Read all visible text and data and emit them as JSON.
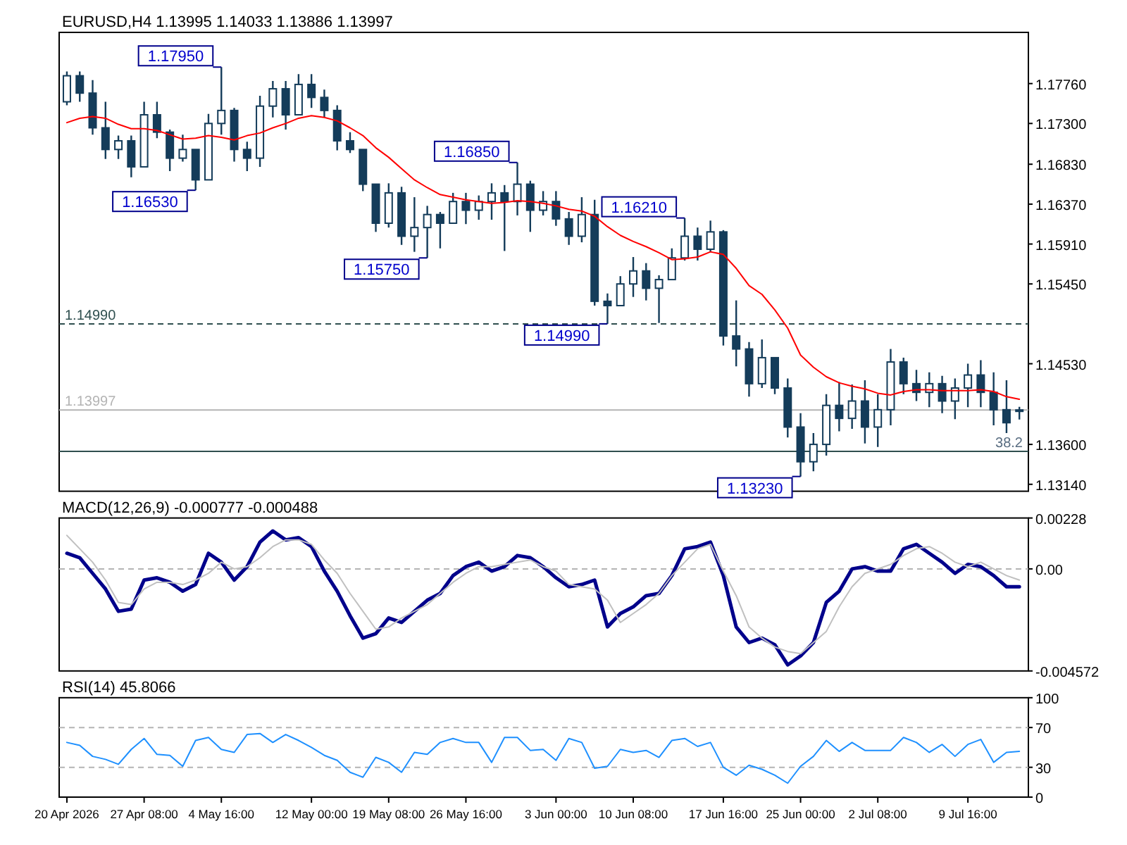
{
  "chart_data": [
    {
      "type": "candlestick",
      "title": "EURUSD,H4  1.13995 1.14033 1.13886 1.13997",
      "tick_labels": "y",
      "ylim": [
        1.1306,
        1.1835
      ],
      "yticks": [
        {
          "value": 1.1776,
          "label": "1.17760"
        },
        {
          "value": 1.173,
          "label": "1.17300"
        },
        {
          "value": 1.1683,
          "label": "1.16830"
        },
        {
          "value": 1.1637,
          "label": "1.16370"
        },
        {
          "value": 1.1591,
          "label": "1.15910"
        },
        {
          "value": 1.1545,
          "label": "1.15450"
        },
        {
          "value": 1.1453,
          "label": "1.14530"
        },
        {
          "value": 1.136,
          "label": "1.13600"
        },
        {
          "value": 1.1314,
          "label": "1.13140"
        }
      ],
      "ohlc": [
        [
          1.1755,
          1.179,
          1.1751,
          1.1785
        ],
        [
          1.1785,
          1.179,
          1.1755,
          1.1765
        ],
        [
          1.1765,
          1.178,
          1.1717,
          1.1725
        ],
        [
          1.1725,
          1.1755,
          1.1689,
          1.17
        ],
        [
          1.17,
          1.1716,
          1.1689,
          1.171
        ],
        [
          1.171,
          1.1716,
          1.1668,
          1.168
        ],
        [
          1.168,
          1.1755,
          1.168,
          1.174
        ],
        [
          1.174,
          1.1755,
          1.1713,
          1.172
        ],
        [
          1.172,
          1.1723,
          1.1675,
          1.169
        ],
        [
          1.169,
          1.1717,
          1.1686,
          1.17
        ],
        [
          1.17,
          1.17,
          1.1653,
          1.1665
        ],
        [
          1.1665,
          1.1741,
          1.1665,
          1.173
        ],
        [
          1.173,
          1.1795,
          1.1717,
          1.1745
        ],
        [
          1.1745,
          1.1748,
          1.1686,
          1.17
        ],
        [
          1.17,
          1.1709,
          1.1675,
          1.169
        ],
        [
          1.169,
          1.1762,
          1.168,
          1.175
        ],
        [
          1.175,
          1.1779,
          1.1737,
          1.177
        ],
        [
          1.177,
          1.1779,
          1.1723,
          1.174
        ],
        [
          1.174,
          1.1787,
          1.174,
          1.1775
        ],
        [
          1.1775,
          1.1787,
          1.1748,
          1.176
        ],
        [
          1.176,
          1.1769,
          1.1737,
          1.1745
        ],
        [
          1.1745,
          1.1751,
          1.1699,
          1.171
        ],
        [
          1.171,
          1.172,
          1.1696,
          1.17
        ],
        [
          1.17,
          1.17,
          1.1652,
          1.166
        ],
        [
          1.166,
          1.166,
          1.1605,
          1.1615
        ],
        [
          1.1615,
          1.1661,
          1.161,
          1.165
        ],
        [
          1.165,
          1.1657,
          1.159,
          1.16
        ],
        [
          1.16,
          1.1645,
          1.1582,
          1.161
        ],
        [
          1.161,
          1.1635,
          1.1575,
          1.1625
        ],
        [
          1.1625,
          1.1628,
          1.1586,
          1.1615
        ],
        [
          1.1615,
          1.165,
          1.1615,
          1.164
        ],
        [
          1.164,
          1.165,
          1.1614,
          1.163
        ],
        [
          1.163,
          1.1647,
          1.1619,
          1.164
        ],
        [
          1.164,
          1.1661,
          1.1619,
          1.165
        ],
        [
          1.165,
          1.1659,
          1.1583,
          1.164
        ],
        [
          1.164,
          1.1685,
          1.1624,
          1.166
        ],
        [
          1.166,
          1.1664,
          1.1605,
          1.163
        ],
        [
          1.163,
          1.1652,
          1.1624,
          1.164
        ],
        [
          1.164,
          1.1652,
          1.1612,
          1.162
        ],
        [
          1.162,
          1.1628,
          1.159,
          1.16
        ],
        [
          1.16,
          1.1645,
          1.1593,
          1.1625
        ],
        [
          1.1625,
          1.1642,
          1.152,
          1.1525
        ],
        [
          1.1525,
          1.1534,
          1.1499,
          1.152
        ],
        [
          1.152,
          1.1554,
          1.152,
          1.1545
        ],
        [
          1.1545,
          1.1576,
          1.153,
          1.156
        ],
        [
          1.156,
          1.1569,
          1.1526,
          1.154
        ],
        [
          1.154,
          1.1555,
          1.15,
          1.155
        ],
        [
          1.155,
          1.1586,
          1.155,
          1.1575
        ],
        [
          1.1575,
          1.1621,
          1.1572,
          1.16
        ],
        [
          1.16,
          1.161,
          1.1572,
          1.1585
        ],
        [
          1.1585,
          1.1618,
          1.1582,
          1.1605
        ],
        [
          1.1605,
          1.1607,
          1.1474,
          1.1485
        ],
        [
          1.1485,
          1.1526,
          1.145,
          1.147
        ],
        [
          1.147,
          1.1478,
          1.1415,
          1.143
        ],
        [
          1.143,
          1.1481,
          1.1425,
          1.146
        ],
        [
          1.146,
          1.146,
          1.1418,
          1.1425
        ],
        [
          1.1425,
          1.1436,
          1.1368,
          1.138
        ],
        [
          1.138,
          1.1396,
          1.1323,
          1.134
        ],
        [
          1.134,
          1.1373,
          1.1329,
          1.136
        ],
        [
          1.136,
          1.1418,
          1.1347,
          1.1405
        ],
        [
          1.1405,
          1.1432,
          1.1375,
          1.139
        ],
        [
          1.139,
          1.1429,
          1.1378,
          1.141
        ],
        [
          1.141,
          1.1434,
          1.1361,
          1.138
        ],
        [
          1.138,
          1.1418,
          1.1357,
          1.14
        ],
        [
          1.14,
          1.147,
          1.1382,
          1.1455
        ],
        [
          1.1455,
          1.146,
          1.1418,
          1.143
        ],
        [
          1.143,
          1.1446,
          1.141,
          1.142
        ],
        [
          1.142,
          1.1443,
          1.1403,
          1.143
        ],
        [
          1.143,
          1.1439,
          1.1396,
          1.141
        ],
        [
          1.141,
          1.1436,
          1.1389,
          1.1425
        ],
        [
          1.1425,
          1.1453,
          1.1403,
          1.144
        ],
        [
          1.144,
          1.1457,
          1.1403,
          1.142
        ],
        [
          1.142,
          1.1443,
          1.1382,
          1.14
        ],
        [
          1.14,
          1.1434,
          1.1373,
          1.1385
        ],
        [
          1.13995,
          1.14033,
          1.13886,
          1.13997
        ]
      ],
      "series": [
        {
          "type": "line",
          "color": "#ff0000",
          "values": [
            1.1731,
            1.1736,
            1.1738,
            1.1736,
            1.1729,
            1.1724,
            1.1724,
            1.1722,
            1.1717,
            1.1712,
            1.1713,
            1.1716,
            1.1714,
            1.1711,
            1.1716,
            1.1719,
            1.1725,
            1.173,
            1.1736,
            1.1739,
            1.1737,
            1.1733,
            1.1725,
            1.1716,
            1.1702,
            1.1691,
            1.1678,
            1.1665,
            1.1656,
            1.1648,
            1.1645,
            1.1642,
            1.164,
            1.1638,
            1.1639,
            1.1641,
            1.164,
            1.1638,
            1.1635,
            1.1631,
            1.1629,
            1.1623,
            1.1611,
            1.1601,
            1.1594,
            1.1588,
            1.1581,
            1.1573,
            1.1574,
            1.1576,
            1.1582,
            1.1579,
            1.1563,
            1.1543,
            1.1533,
            1.1515,
            1.1494,
            1.1463,
            1.1449,
            1.1438,
            1.1431,
            1.1427,
            1.1424,
            1.1419,
            1.1417,
            1.1421,
            1.1423,
            1.1423,
            1.1422,
            1.1422,
            1.1422,
            1.1423,
            1.1421,
            1.1415,
            1.1412
          ]
        }
      ],
      "ref_lines": [
        {
          "axis": "y",
          "value": 1.1499,
          "label": "1.14990",
          "color": "#2f4f4f",
          "line_style": "dashed"
        },
        {
          "axis": "y",
          "value": 1.13997,
          "label": "1.13997",
          "color": "#b4b4b4",
          "line_style": "solid"
        },
        {
          "axis": "y",
          "value": 1.1352,
          "color": "#2f4f4f",
          "line_style": "solid"
        }
      ],
      "annotations": [
        "1.17950",
        "1.16530",
        "1.15750",
        "1.16850",
        "1.14990",
        "1.16210",
        "1.13230",
        {
          "text": "38.2",
          "y": 1.1352
        }
      ]
    },
    {
      "type": "line",
      "title": "MACD(12,26,9) -0.000777 -0.000488",
      "tick_labels": "y",
      "ylim": [
        -0.004572,
        0.00228
      ],
      "yticks": [
        0.00228,
        {
          "value": 0,
          "label": "0.00"
        },
        -0.004572
      ],
      "ref_lines": [
        {
          "axis": "y",
          "value": 0,
          "color": "#b4b4b4",
          "line_style": "dashed"
        }
      ],
      "series": [
        {
          "color": "#00008b",
          "values": [
            0.0007,
            0.0005,
            -0.0002,
            -0.0009,
            -0.0019,
            -0.0018,
            -0.0005,
            -0.0004,
            -0.0006,
            -0.001,
            -0.0007,
            0.0007,
            0.0003,
            -0.0005,
            0.0001,
            0.0012,
            0.0017,
            0.0013,
            0.0014,
            0.001,
            -0.0001,
            -0.001,
            -0.0021,
            -0.0031,
            -0.0029,
            -0.0022,
            -0.0024,
            -0.0019,
            -0.0014,
            -0.0011,
            -0.0003,
            0.0001,
            0.0003,
            -0.0001,
            0.0001,
            0.0006,
            0.0005,
            0.0001,
            -0.0004,
            -0.0008,
            -0.0007,
            -0.0005,
            -0.0026,
            -0.002,
            -0.0017,
            -0.0012,
            -0.0011,
            -0.0003,
            0.0009,
            0.001,
            0.0012,
            -0.0003,
            -0.0026,
            -0.0033,
            -0.0031,
            -0.0034,
            -0.0043,
            -0.0039,
            -0.0033,
            -0.0015,
            -0.001,
            0,
            0.0001,
            -0.0001,
            -0.0001,
            0.0009,
            0.0011,
            0.0007,
            0.0003,
            -0.0002,
            0.0002,
            0.0001,
            -0.0003,
            -0.0008,
            -0.0008
          ]
        },
        {
          "color": "#c0c0c0",
          "values": [
            0.0015,
            0.0009,
            0.0003,
            -0.0005,
            -0.0015,
            -0.0016,
            -0.0009,
            -0.0006,
            -0.0006,
            -0.0007,
            -0.0005,
            -0.0002,
            0.0003,
            0,
            0.0001,
            0.0005,
            0.001,
            0.0013,
            0.0013,
            0.0011,
            0.0004,
            -0.0002,
            -0.0011,
            -0.0019,
            -0.0027,
            -0.0026,
            -0.0022,
            -0.0019,
            -0.0016,
            -0.0011,
            -0.0006,
            -0.0002,
            0.0001,
            0.0001,
            0.0002,
            0.0003,
            0.0004,
            0.0001,
            -0.0001,
            -0.0007,
            -0.0008,
            -0.0009,
            -0.0014,
            -0.0024,
            -0.002,
            -0.0016,
            -0.0011,
            -0.0003,
            0.0003,
            0.0009,
            0.0011,
            -0.0001,
            -0.0012,
            -0.0026,
            -0.0031,
            -0.0035,
            -0.0037,
            -0.0038,
            -0.0033,
            -0.0028,
            -0.0017,
            -0.0008,
            -0.0002,
            0,
            0.0002,
            0.0006,
            0.0009,
            0.001,
            0.0007,
            0.0003,
            0.0001,
            0.0003,
            0,
            -0.0003,
            -0.0005
          ]
        }
      ]
    },
    {
      "type": "line",
      "title": "RSI(14) 45.8066",
      "categories": [
        "20 Apr 2026",
        null,
        null,
        null,
        null,
        null,
        "27 Apr 08:00",
        null,
        null,
        null,
        null,
        null,
        "4 May 16:00",
        null,
        null,
        null,
        null,
        null,
        null,
        "12 May 00:00",
        null,
        null,
        null,
        null,
        null,
        "19 May 08:00",
        null,
        null,
        null,
        null,
        null,
        "26 May 16:00",
        null,
        null,
        null,
        null,
        null,
        null,
        "3 Jun 00:00",
        null,
        null,
        null,
        null,
        null,
        "10 Jun 08:00",
        null,
        null,
        null,
        null,
        null,
        null,
        "17 Jun 16:00",
        null,
        null,
        null,
        null,
        null,
        "25 Jun 00:00",
        null,
        null,
        null,
        null,
        null,
        "2 Jul 08:00",
        null,
        null,
        null,
        null,
        null,
        null,
        "9 Jul 16:00",
        null,
        null,
        null,
        null
      ],
      "ylim": [
        0,
        100
      ],
      "yticks": [
        100,
        70,
        30,
        0
      ],
      "ref_lines": [
        {
          "axis": "y",
          "value": 70,
          "color": "#b4b4b4",
          "line_style": "dashed"
        },
        {
          "axis": "y",
          "value": 30,
          "color": "#b4b4b4",
          "line_style": "dashed"
        }
      ],
      "series": [
        {
          "color": "#1e90ff",
          "values": [
            55,
            52,
            41,
            38,
            33,
            48,
            59,
            43,
            42,
            31,
            57,
            60,
            48,
            45,
            63,
            64,
            55,
            63,
            57,
            50,
            42,
            37,
            25,
            20,
            40,
            35,
            25,
            45,
            43,
            55,
            59,
            55,
            55,
            35,
            60,
            60,
            47,
            48,
            37,
            59,
            55,
            29,
            31,
            48,
            45,
            47,
            40,
            57,
            59,
            51,
            55,
            30,
            22,
            32,
            28,
            22,
            14,
            31,
            41,
            57,
            46,
            55,
            47,
            47,
            47,
            60,
            55,
            45,
            53,
            41,
            53,
            58,
            35,
            45,
            46
          ]
        }
      ]
    }
  ]
}
